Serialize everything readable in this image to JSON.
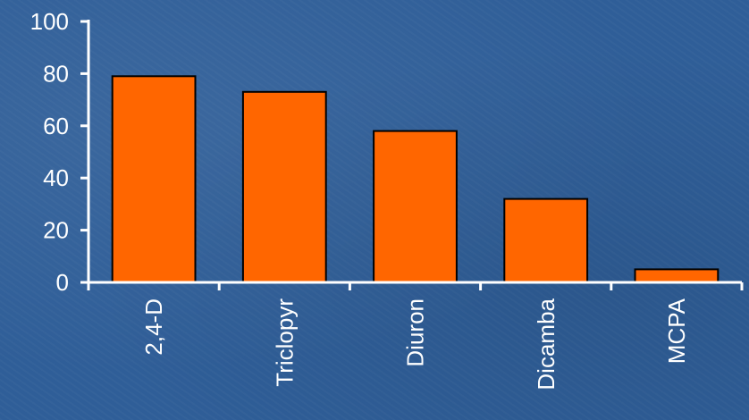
{
  "chart_data": {
    "type": "bar",
    "categories": [
      "2,4-D",
      "Triclopyr",
      "Diuron",
      "Dicamba",
      "MCPA"
    ],
    "values": [
      79,
      73,
      58,
      32,
      5
    ],
    "ylim": [
      0,
      100
    ],
    "yticks": [
      0,
      20,
      40,
      60,
      80,
      100
    ],
    "title": "",
    "xlabel": "",
    "ylabel": "",
    "grid": false,
    "legend": "none",
    "colors": {
      "bar_fill": "#ff6600",
      "bar_stroke": "#000000",
      "axis": "#ffffff",
      "text": "#ffffff",
      "background": "#2f5e98"
    }
  }
}
